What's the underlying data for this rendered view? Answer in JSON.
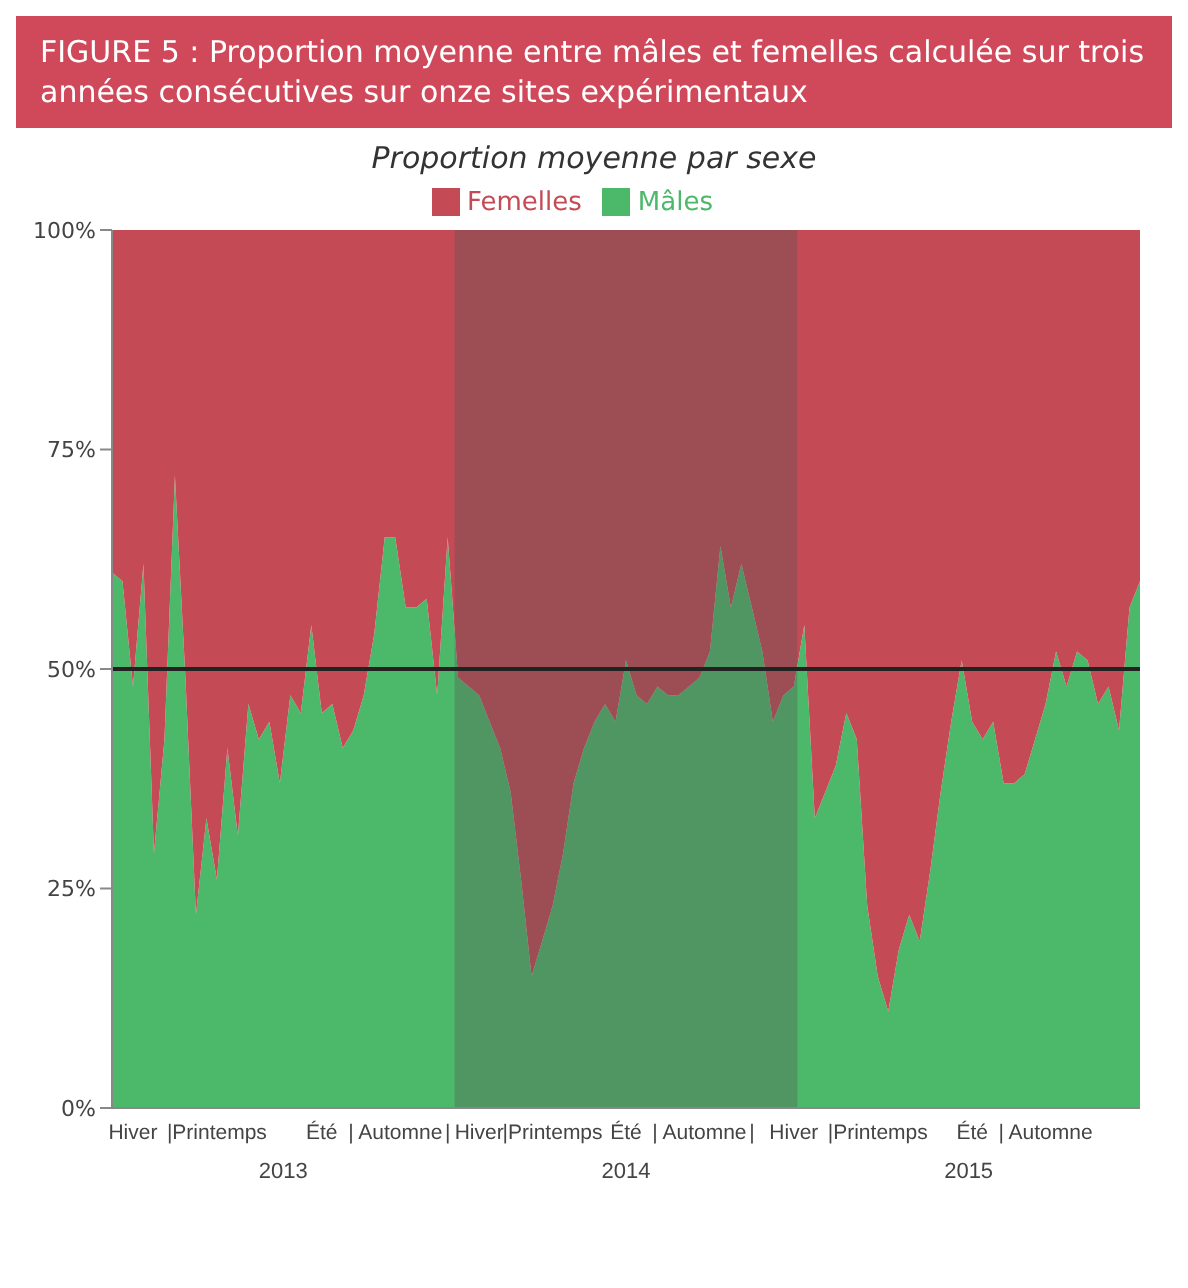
{
  "chart_data": {
    "type": "area",
    "title": "FIGURE 5 : Proportion moyenne entre mâles et femelles calculée sur trois années consécutives sur onze sites expérimentaux",
    "ylabel": "Proportion moyenne par sexe",
    "stacked": true,
    "categories": [
      null,
      null,
      "Hiver",
      null,
      null,
      null,
      null,
      null,
      null,
      null,
      "|Printemps",
      null,
      null,
      null,
      null,
      null,
      null,
      null,
      null,
      null,
      "Été",
      null,
      null,
      null,
      null,
      null,
      null,
      "| Automne",
      null,
      null,
      null,
      null,
      "|",
      null,
      null,
      "Hiver",
      null,
      null,
      null,
      null,
      null,
      null,
      "|Printemps",
      null,
      null,
      null,
      null,
      null,
      null,
      "Été",
      null,
      null,
      null,
      null,
      null,
      null,
      "| Automne",
      null,
      null,
      null,
      null,
      "|",
      null,
      null,
      null,
      "Hiver",
      null,
      null,
      null,
      null,
      null,
      null,
      null,
      "|Printemps",
      null,
      null,
      null,
      null,
      null,
      null,
      null,
      null,
      "Été",
      null,
      null,
      null,
      null,
      null,
      null,
      "| Automne",
      null,
      null,
      null,
      null,
      null,
      null,
      null,
      null,
      null
    ],
    "series": [
      {
        "name": "Mâles",
        "color": "#4cb86a",
        "values": [
          61,
          60,
          48,
          62,
          29,
          42,
          72,
          49,
          22,
          33,
          26,
          41,
          31,
          46,
          42,
          44,
          37,
          47,
          45,
          55,
          45,
          46,
          41,
          43,
          47,
          54,
          65,
          65,
          57,
          57,
          58,
          47,
          65,
          49,
          48,
          47,
          44,
          41,
          36,
          26,
          15,
          19,
          23,
          29,
          37,
          41,
          44,
          46,
          44,
          51,
          47,
          46,
          48,
          47,
          47,
          48,
          49,
          52,
          64,
          57,
          62,
          57,
          52,
          44,
          47,
          48,
          55,
          33,
          36,
          39,
          45,
          42,
          23,
          15,
          11,
          18,
          22,
          19,
          27,
          36,
          44,
          51,
          44,
          42,
          44,
          37,
          37,
          38,
          42,
          46,
          52,
          48,
          52,
          51,
          46,
          48,
          43,
          57,
          60
        ]
      },
      {
        "name": "Femelles",
        "color": "#c44a55",
        "values": [
          39,
          40,
          52,
          38,
          71,
          58,
          28,
          51,
          78,
          67,
          74,
          59,
          69,
          54,
          58,
          56,
          63,
          53,
          55,
          45,
          55,
          54,
          59,
          57,
          53,
          46,
          35,
          35,
          43,
          43,
          42,
          53,
          35,
          51,
          52,
          53,
          56,
          59,
          64,
          74,
          85,
          81,
          77,
          71,
          63,
          59,
          56,
          54,
          56,
          49,
          53,
          54,
          52,
          53,
          53,
          52,
          51,
          48,
          36,
          43,
          38,
          43,
          48,
          56,
          53,
          52,
          45,
          67,
          64,
          61,
          55,
          58,
          77,
          85,
          89,
          82,
          78,
          81,
          73,
          64,
          56,
          49,
          56,
          58,
          56,
          63,
          63,
          62,
          58,
          54,
          48,
          52,
          48,
          49,
          54,
          52,
          57,
          43,
          40
        ]
      }
    ],
    "ylim": [
      0,
      100
    ],
    "yticks": [
      {
        "value": 0,
        "label": "0%"
      },
      {
        "value": 25,
        "label": "25%"
      },
      {
        "value": 50,
        "label": "50%"
      },
      {
        "value": 75,
        "label": "75%"
      },
      {
        "value": 100,
        "label": "100%"
      }
    ],
    "ref_lines": [
      {
        "axis": "y",
        "value": 50,
        "color": "#222222"
      }
    ],
    "annotations": [
      "2013",
      "2014",
      "2015"
    ],
    "legend": "top",
    "grid": false
  }
}
